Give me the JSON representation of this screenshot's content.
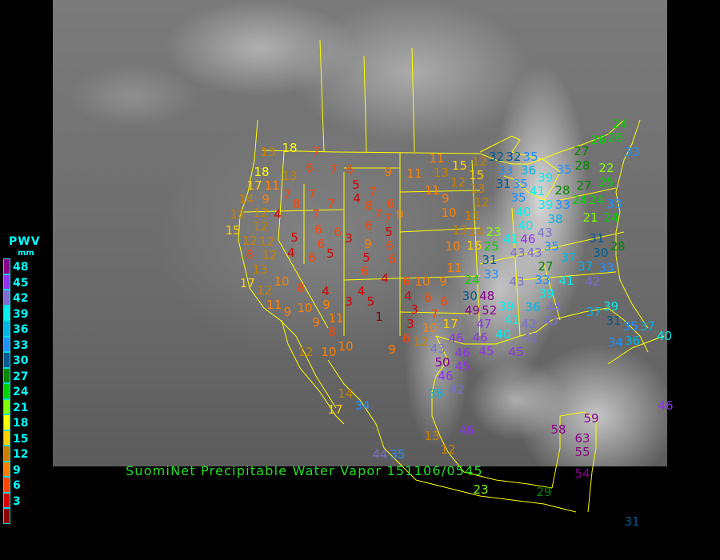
{
  "title": "SuomiNet Precipitable Water Vapor 151106/0545",
  "legend": {
    "title": "PWV",
    "unit": "mm",
    "ticks": [
      "48",
      "45",
      "42",
      "39",
      "36",
      "33",
      "30",
      "27",
      "24",
      "21",
      "18",
      "15",
      "12",
      "9",
      "6",
      "3"
    ],
    "colors": [
      "#8b008b",
      "#9030f0",
      "#7b6fd0",
      "#00f0f0",
      "#00b4e6",
      "#1e90ff",
      "#005a96",
      "#008800",
      "#00d000",
      "#80ff00",
      "#ffff00",
      "#ffd000",
      "#c88000",
      "#ff8000",
      "#ff4500",
      "#d40000",
      "#8b0000"
    ]
  },
  "map": {
    "border_color": "#ffff00",
    "background": "infrared satellite imagery",
    "stations": [
      18,
      13,
      7,
      18,
      13,
      6,
      7,
      6,
      17,
      11,
      7,
      7,
      7,
      8,
      9,
      14,
      13,
      12,
      4,
      15,
      12,
      12,
      5,
      7,
      6,
      6,
      3,
      8,
      12,
      12,
      4,
      6,
      5,
      6,
      13,
      17,
      10,
      8,
      4,
      12,
      11,
      9,
      10,
      9,
      3,
      4,
      5,
      1,
      9,
      11,
      8,
      12,
      10,
      10,
      9,
      5,
      4,
      7,
      8,
      6,
      7,
      9,
      6,
      7,
      5,
      9,
      6,
      5,
      6,
      6,
      4,
      9,
      11,
      11,
      13,
      15,
      12,
      11,
      12,
      15,
      13,
      12,
      9,
      10,
      13,
      13,
      14,
      10,
      16,
      11,
      6,
      10,
      9,
      4,
      6,
      6,
      3,
      7,
      3,
      10,
      6,
      12,
      17,
      23,
      25,
      31,
      33,
      24,
      30,
      48,
      49,
      52,
      47,
      46,
      46,
      45,
      43,
      50,
      46,
      45,
      46,
      42,
      38,
      45,
      39,
      41,
      40,
      42,
      42,
      36,
      44,
      43,
      39,
      41,
      42,
      33,
      27,
      37,
      33,
      37,
      30,
      31,
      28,
      43,
      43,
      35,
      46,
      43,
      41,
      40,
      40,
      35,
      35,
      31,
      33,
      32,
      32,
      35,
      36,
      39,
      41,
      39,
      28,
      33,
      38,
      35,
      28,
      27,
      27,
      24,
      24,
      25,
      22,
      33,
      21,
      24,
      26,
      26,
      24,
      33,
      37,
      39,
      31,
      35,
      37,
      34,
      36,
      40,
      43,
      46,
      14,
      34,
      17,
      13,
      46,
      44,
      35,
      58,
      59,
      63,
      55,
      54,
      23,
      29,
      12,
      31
    ]
  }
}
